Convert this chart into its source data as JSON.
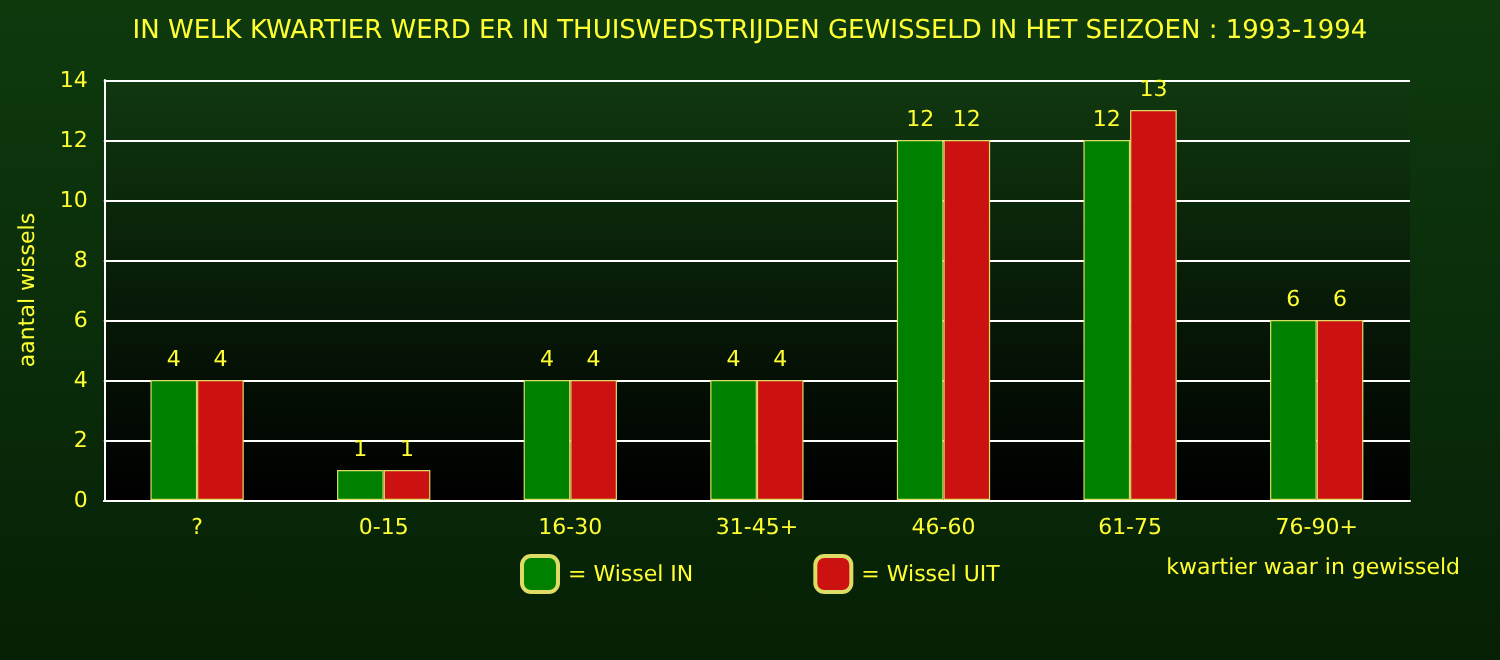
{
  "chart_data": {
    "type": "bar",
    "title": "IN WELK KWARTIER WERD ER IN THUISWEDSTRIJDEN GEWISSELD IN HET SEIZOEN : 1993-1994",
    "xlabel": "kwartier waar in gewisseld",
    "ylabel": "aantal wissels",
    "categories": [
      "?",
      "0-15",
      "16-30",
      "31-45+",
      "46-60",
      "61-75",
      "76-90+"
    ],
    "series": [
      {
        "name": "= Wissel IN",
        "color": "#008000",
        "values": [
          4,
          1,
          4,
          4,
          12,
          12,
          6
        ]
      },
      {
        "name": "= Wissel UIT",
        "color": "#cc1111",
        "values": [
          4,
          1,
          4,
          4,
          12,
          13,
          6
        ]
      }
    ],
    "ylim": [
      0,
      14
    ],
    "yticks": [
      0,
      2,
      4,
      6,
      8,
      10,
      12,
      14
    ],
    "grid": "y",
    "legend": "bottom",
    "data_labels": true
  }
}
